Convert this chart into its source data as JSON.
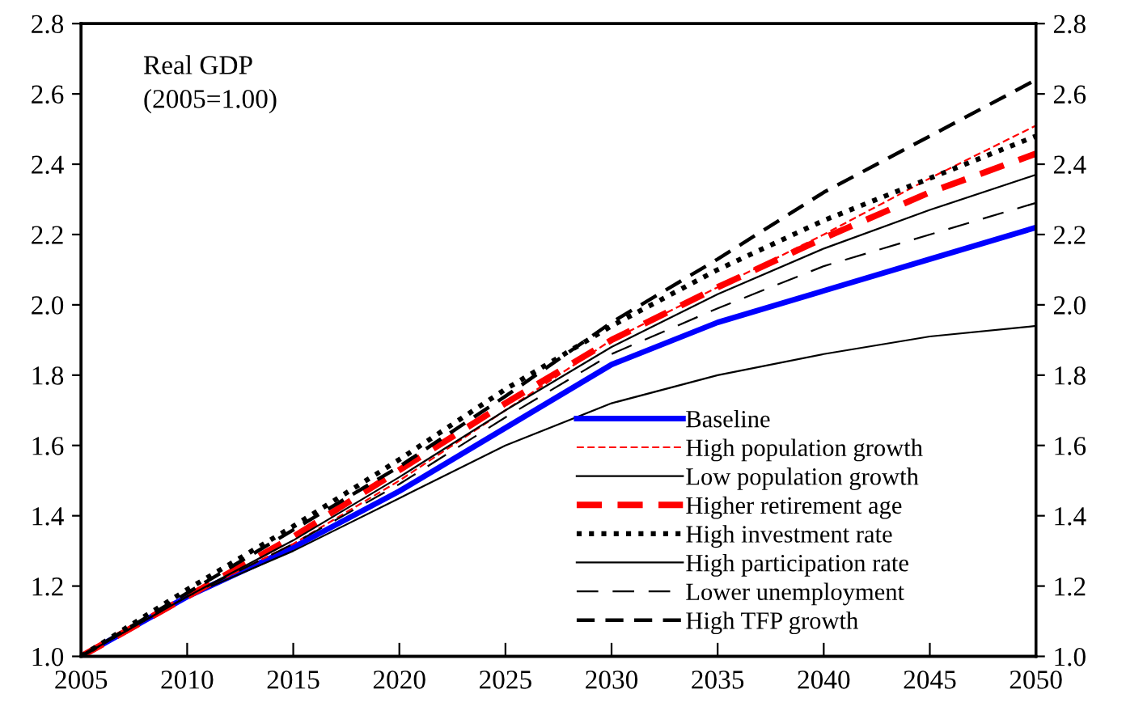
{
  "chart_data": {
    "type": "line",
    "annotations": [
      "Real GDP\n(2005=1.00)"
    ],
    "x": [
      2005,
      2010,
      2015,
      2020,
      2025,
      2030,
      2035,
      2040,
      2045,
      2050
    ],
    "series": [
      {
        "name": "Baseline",
        "color": "#0000ff",
        "line_style": "solid",
        "values": [
          1.0,
          1.17,
          1.31,
          1.47,
          1.65,
          1.83,
          1.95,
          2.04,
          2.13,
          2.22
        ]
      },
      {
        "name": "High population growth",
        "color": "#ff0000",
        "line_style": "dashed",
        "values": [
          1.0,
          1.17,
          1.32,
          1.5,
          1.7,
          1.9,
          2.05,
          2.2,
          2.36,
          2.51
        ]
      },
      {
        "name": "Low population growth",
        "color": "#000000",
        "line_style": "solid",
        "values": [
          1.0,
          1.17,
          1.3,
          1.45,
          1.6,
          1.72,
          1.8,
          1.86,
          1.91,
          1.94
        ]
      },
      {
        "name": "Higher retirement age",
        "color": "#ff0000",
        "line_style": "dashed",
        "values": [
          1.0,
          1.17,
          1.34,
          1.53,
          1.72,
          1.9,
          2.05,
          2.19,
          2.32,
          2.43
        ]
      },
      {
        "name": "High investment rate",
        "color": "#000000",
        "line_style": "dotted",
        "values": [
          1.0,
          1.19,
          1.37,
          1.56,
          1.76,
          1.94,
          2.1,
          2.24,
          2.36,
          2.48
        ]
      },
      {
        "name": "High participation rate",
        "color": "#000000",
        "line_style": "solid",
        "values": [
          1.0,
          1.17,
          1.33,
          1.51,
          1.7,
          1.88,
          2.03,
          2.16,
          2.27,
          2.37
        ]
      },
      {
        "name": "Lower unemployment",
        "color": "#000000",
        "line_style": "dashed",
        "values": [
          1.0,
          1.17,
          1.32,
          1.49,
          1.68,
          1.86,
          1.99,
          2.11,
          2.2,
          2.29
        ]
      },
      {
        "name": "High TFP growth",
        "color": "#000000",
        "line_style": "dashed",
        "values": [
          1.0,
          1.18,
          1.36,
          1.54,
          1.74,
          1.95,
          2.13,
          2.32,
          2.48,
          2.64
        ]
      }
    ],
    "xlim": [
      2005,
      2050
    ],
    "xticks": [
      2005,
      2010,
      2015,
      2020,
      2025,
      2030,
      2035,
      2040,
      2045,
      2050
    ],
    "ylim": [
      1.0,
      2.8
    ],
    "yticks": [
      {
        "value": 1.0,
        "label": "1.0"
      },
      {
        "value": 1.2,
        "label": "1.2"
      },
      {
        "value": 1.4,
        "label": "1.4"
      },
      {
        "value": 1.6,
        "label": "1.6"
      },
      {
        "value": 1.8,
        "label": "1.8"
      },
      {
        "value": 2.0,
        "label": "2.0"
      },
      {
        "value": 2.2,
        "label": "2.2"
      },
      {
        "value": 2.4,
        "label": "2.4"
      },
      {
        "value": 2.6,
        "label": "2.6"
      },
      {
        "value": 2.8,
        "label": "2.8"
      }
    ],
    "y2lim": [
      1.0,
      2.8
    ],
    "y2ticks": [
      {
        "value": 1.0,
        "label": "1.0"
      },
      {
        "value": 1.2,
        "label": "1.2"
      },
      {
        "value": 1.4,
        "label": "1.4"
      },
      {
        "value": 1.6,
        "label": "1.6"
      },
      {
        "value": 1.8,
        "label": "1.8"
      },
      {
        "value": 2.0,
        "label": "2.0"
      },
      {
        "value": 2.2,
        "label": "2.2"
      },
      {
        "value": 2.4,
        "label": "2.4"
      },
      {
        "value": 2.6,
        "label": "2.6"
      },
      {
        "value": 2.8,
        "label": "2.8"
      }
    ],
    "grid": false,
    "legend": "bottom right",
    "marker": "none"
  }
}
